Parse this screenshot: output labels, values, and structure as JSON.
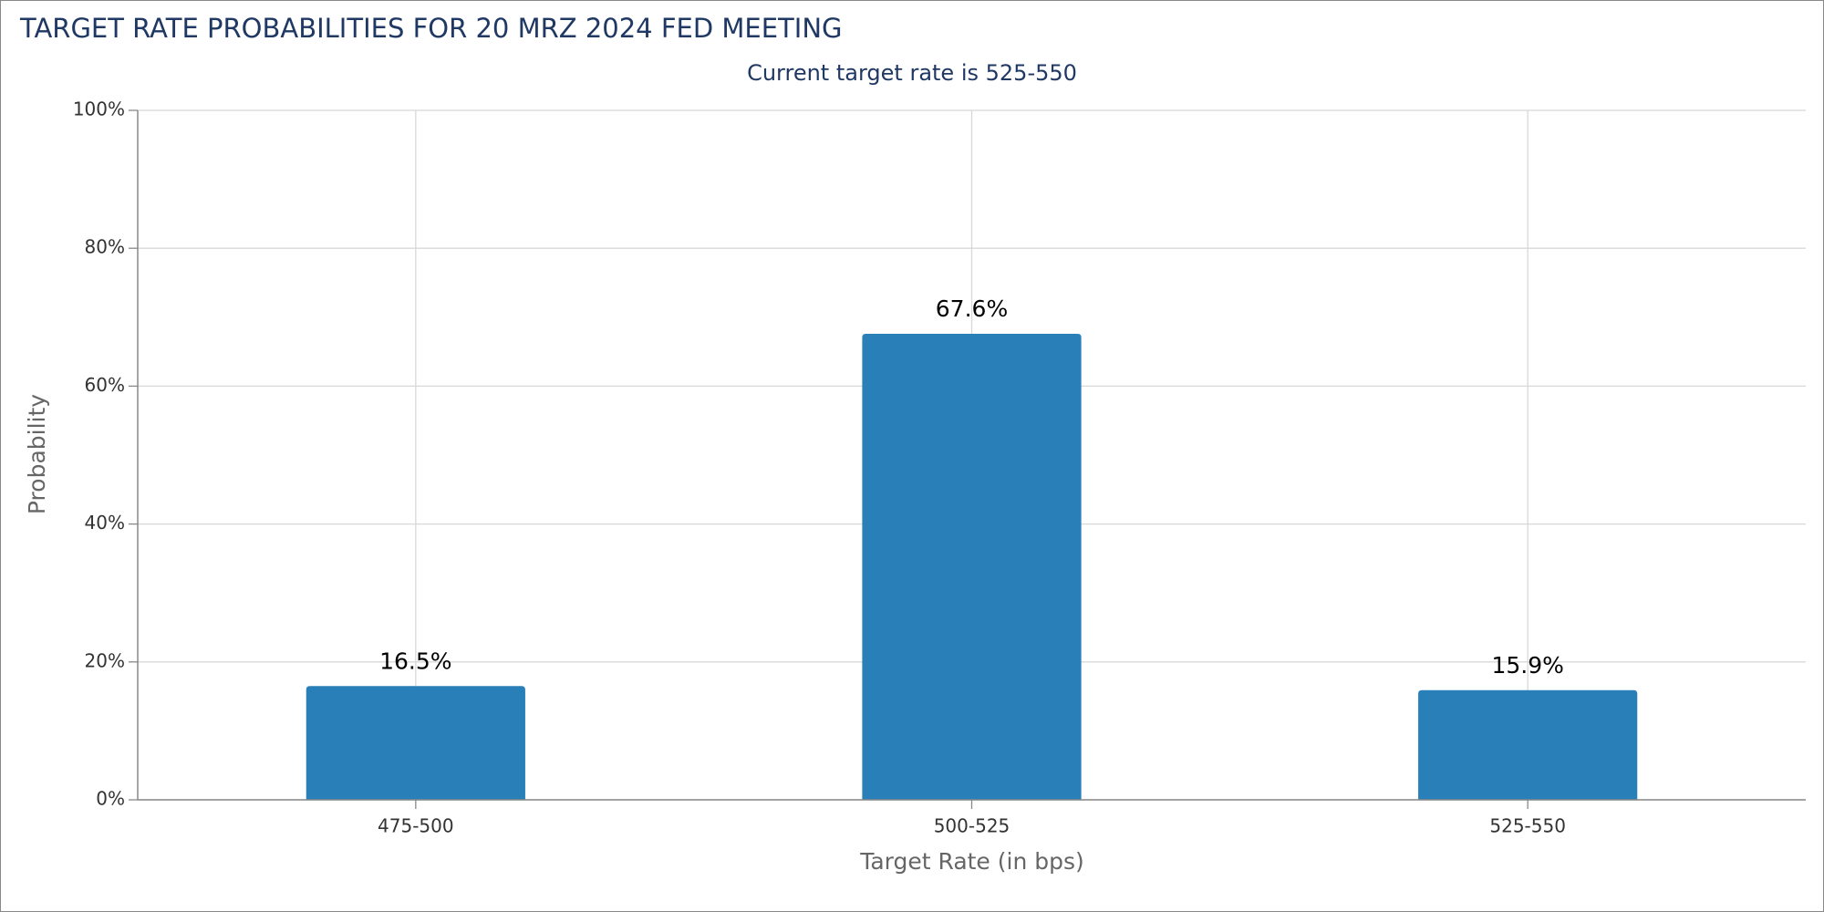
{
  "chart_data": {
    "type": "bar",
    "title": "TARGET RATE PROBABILITIES FOR 20 MRZ 2024 FED MEETING",
    "subtitle": "Current target rate is 525-550",
    "x_label": "Target Rate (in bps)",
    "y_label": "Probability",
    "categories": [
      "475-500",
      "500-525",
      "525-550"
    ],
    "values": [
      16.5,
      67.6,
      15.9
    ],
    "value_labels": [
      "16.5%",
      "67.6%",
      "15.9%"
    ],
    "color": "#2980b9",
    "ylim": [
      0,
      100
    ],
    "yticks": [
      {
        "value": 0,
        "label": "0%"
      },
      {
        "value": 20,
        "label": "20%"
      },
      {
        "value": 40,
        "label": "40%"
      },
      {
        "value": 60,
        "label": "60%"
      },
      {
        "value": 80,
        "label": "80%"
      },
      {
        "value": 100,
        "label": "100%"
      }
    ],
    "grid": true
  }
}
